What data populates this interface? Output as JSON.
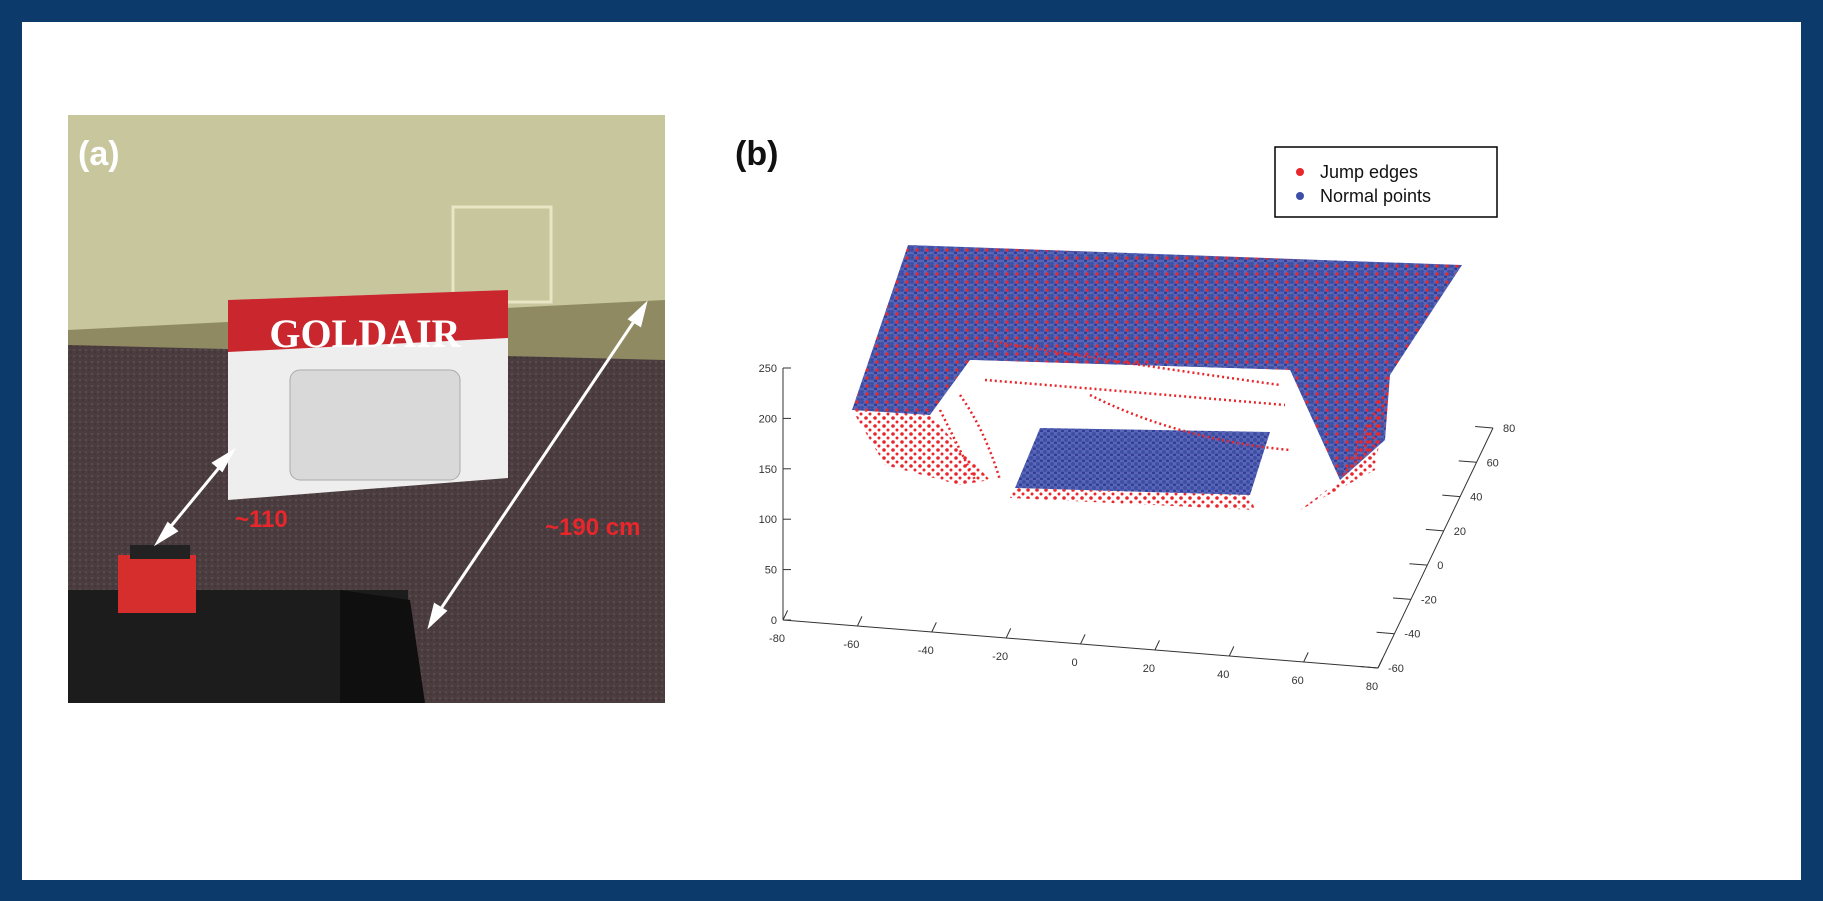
{
  "panel_a": {
    "label": "(a)",
    "brand": "GOLDAIR",
    "annotations": [
      "~110",
      "~190 cm"
    ]
  },
  "panel_b": {
    "label": "(b)",
    "legend": [
      {
        "name": "Jump edges",
        "color": "#e8262b"
      },
      {
        "name": "Normal points",
        "color": "#3d4ea6"
      }
    ],
    "zticks": [
      0,
      50,
      100,
      150,
      200,
      250
    ],
    "xticks": [
      -80,
      -60,
      -40,
      -20,
      0,
      20,
      40,
      60,
      80
    ],
    "yticks": [
      -60,
      -40,
      -20,
      0,
      20,
      40,
      60,
      80
    ]
  }
}
